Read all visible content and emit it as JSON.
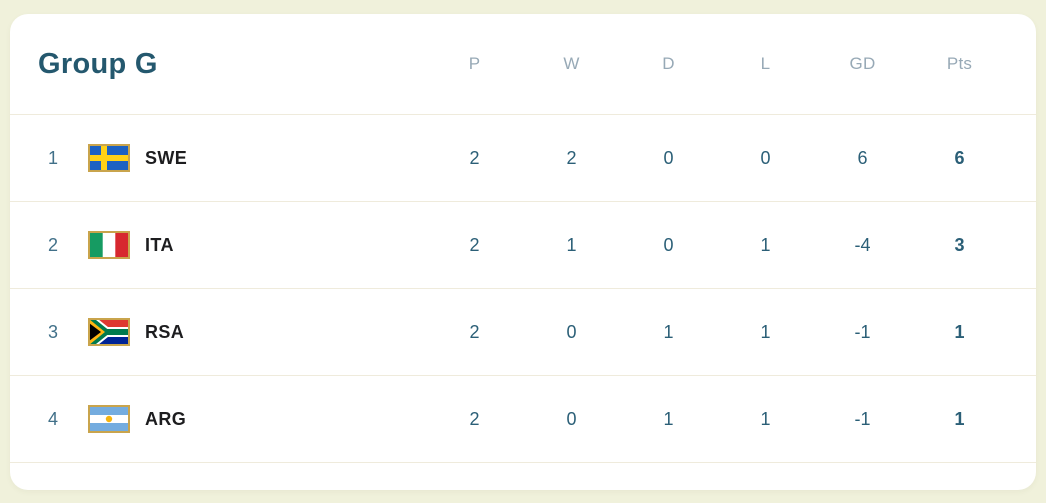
{
  "theme": {
    "page_bg": "#f0f1db",
    "card_bg": "#ffffff",
    "title_color": "#24586e",
    "header_color": "#97a9b6",
    "value_color": "#2b5f77",
    "rank_color": "#417089",
    "team_color": "#1d1d1f",
    "divider_color": "#efebdc",
    "flag_border": "#c9a44c"
  },
  "table": {
    "title": "Group G",
    "columns": [
      "P",
      "W",
      "D",
      "L",
      "GD",
      "Pts"
    ],
    "rows": [
      {
        "rank": "1",
        "flag": "sweden-flag",
        "team": "SWE",
        "values": [
          "2",
          "2",
          "0",
          "0",
          "6",
          "6"
        ]
      },
      {
        "rank": "2",
        "flag": "italy-flag",
        "team": "ITA",
        "values": [
          "2",
          "1",
          "0",
          "1",
          "-4",
          "3"
        ]
      },
      {
        "rank": "3",
        "flag": "south-africa-flag",
        "team": "RSA",
        "values": [
          "2",
          "0",
          "1",
          "1",
          "-1",
          "1"
        ]
      },
      {
        "rank": "4",
        "flag": "argentina-flag",
        "team": "ARG",
        "values": [
          "2",
          "0",
          "1",
          "1",
          "-1",
          "1"
        ]
      }
    ]
  }
}
